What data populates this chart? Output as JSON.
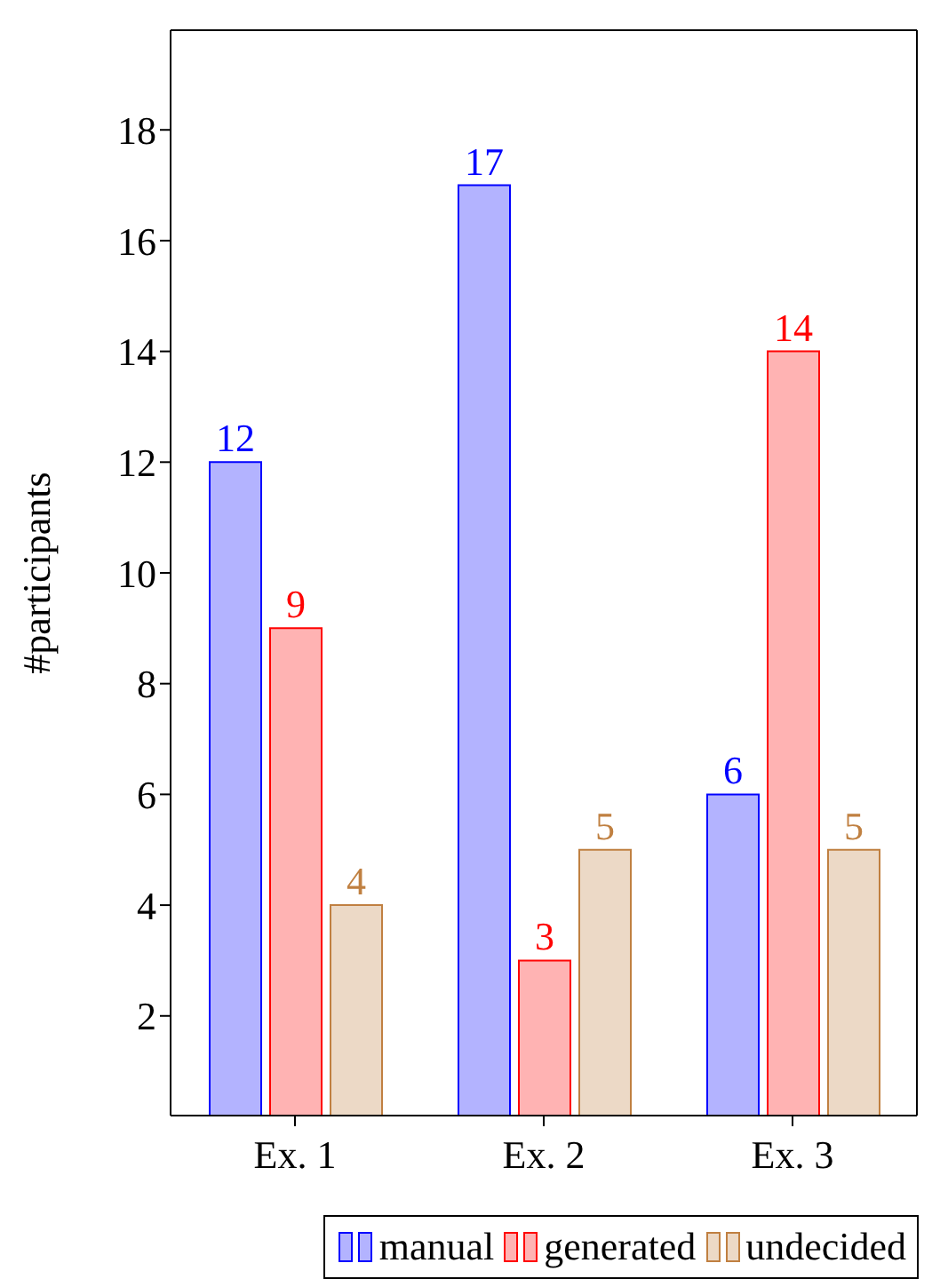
{
  "chart_data": {
    "type": "bar",
    "ylabel": "#participants",
    "categories": [
      "Ex. 1",
      "Ex. 2",
      "Ex. 3"
    ],
    "series": [
      {
        "name": "manual",
        "color": "#b3b3ff",
        "values": [
          12,
          17,
          6
        ]
      },
      {
        "name": "generated",
        "color": "#ffb3b3",
        "values": [
          9,
          3,
          14
        ]
      },
      {
        "name": "undecided",
        "color": "#ecd9c6",
        "values": [
          4,
          5,
          5
        ]
      }
    ],
    "ylim": [
      0.2,
      19.8
    ],
    "yticks": [
      2,
      4,
      6,
      8,
      10,
      12,
      14,
      16,
      18
    ],
    "legend": "bottom",
    "data_labels": true
  }
}
